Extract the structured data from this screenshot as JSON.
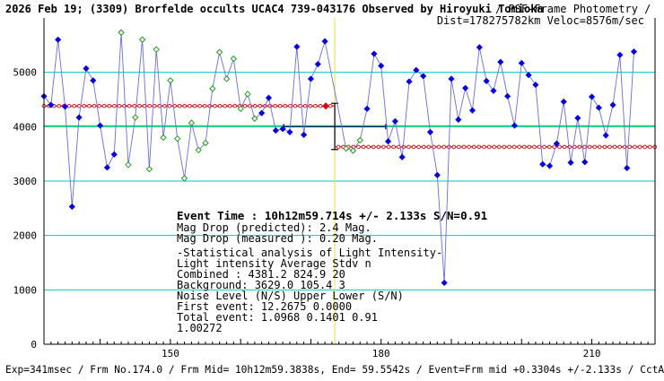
{
  "header": {
    "title": "2026 Feb 19; (3309) Brorfelde occults UCAC4 739-043176 Observed by Hiroyuki Tomioka",
    "method": "/ PSF-Frame Photometry /",
    "dist": "Dist=178275782km Veloc=8576m/sec"
  },
  "footer": {
    "text": "Exp=341msec / Frm No.174.0 / Frm Mid= 10h12m59.3838s, End= 59.5542s / Event=Frm mid +0.3304s +/-2.133s / CctAngle=0.0deg"
  },
  "stats": {
    "event_time": "Event Time : 10h12m59.714s  +/- 2.133s  S/N=0.91",
    "mag_pred": "Mag Drop (predicted):  2.4    Mag.",
    "mag_meas": "Mag Drop (measured ):  0.20   Mag.",
    "title": "-Statistical analysis of Light Intensity-",
    "col_header": "Light intensity     Average   Stdv      n",
    "combined": "  Combined   :        4381.2    824.9     20",
    "background": "  Background:         3629.0    105.4      3",
    "noise_header": "Noise Level (N/S)    Upper     Lower    (S/N)",
    "first_event": "  First event:      12.2675    0.0000",
    "total_event": "  Total event:       1.0968    0.1401    0.91",
    "extra": "1.00272"
  },
  "chart_data": {
    "type": "line",
    "xlim": [
      132,
      219
    ],
    "ylim": [
      0,
      6000
    ],
    "x_ticks": [
      150,
      180,
      210
    ],
    "y_ticks": [
      0,
      1000,
      2000,
      3000,
      4000,
      5000
    ],
    "gridlines": [
      1000,
      2000,
      3000,
      4000,
      5000
    ],
    "levels": {
      "upper": 4381.2,
      "lower": 3629.0,
      "event_x": 173.4,
      "error_x": 2.133,
      "error_y": 300
    },
    "colors": {
      "line": "#6a6ae6",
      "main_marker": "#0000ee",
      "alt_marker": "#1e9e1e",
      "grid": "#00c8c8",
      "green": "#00cc00",
      "red": "#e00000",
      "yellow": "#f0e030",
      "navy": "#000080"
    },
    "series": [
      {
        "values": [
          [
            132,
            4560,
            "b"
          ],
          [
            133,
            4400,
            "b"
          ],
          [
            134,
            5600,
            "b"
          ],
          [
            135,
            4370,
            "b"
          ],
          [
            136,
            2530,
            "b"
          ],
          [
            137,
            4170,
            "b"
          ],
          [
            138,
            5070,
            "b"
          ],
          [
            139,
            4850,
            "b"
          ],
          [
            140,
            4020,
            "b"
          ],
          [
            141,
            3250,
            "b"
          ],
          [
            142,
            3490,
            "b"
          ],
          [
            143,
            5730,
            "g"
          ],
          [
            144,
            3300,
            "g"
          ],
          [
            145,
            4170,
            "g"
          ],
          [
            146,
            5600,
            "g"
          ],
          [
            147,
            3220,
            "g"
          ],
          [
            148,
            5420,
            "g"
          ],
          [
            149,
            3800,
            "g"
          ],
          [
            150,
            4850,
            "g"
          ],
          [
            151,
            3780,
            "g"
          ],
          [
            152,
            3050,
            "g"
          ],
          [
            153,
            4070,
            "g"
          ],
          [
            154,
            3570,
            "g"
          ],
          [
            155,
            3700,
            "g"
          ],
          [
            156,
            4700,
            "g"
          ],
          [
            157,
            5370,
            "g"
          ],
          [
            158,
            4880,
            "g"
          ],
          [
            159,
            5250,
            "g"
          ],
          [
            160,
            4330,
            "g"
          ],
          [
            161,
            4600,
            "g"
          ],
          [
            162,
            4150,
            "g"
          ],
          [
            163,
            4250,
            "b"
          ],
          [
            164,
            4530,
            "b"
          ],
          [
            165,
            3930,
            "b"
          ],
          [
            166,
            3960,
            "b"
          ],
          [
            167,
            3900,
            "b"
          ],
          [
            168,
            5470,
            "b"
          ],
          [
            169,
            3850,
            "b"
          ],
          [
            170,
            4880,
            "b"
          ],
          [
            171,
            5150,
            "b"
          ],
          [
            172,
            5570,
            "b"
          ],
          [
            175,
            3600,
            "g"
          ],
          [
            176,
            3560,
            "g"
          ],
          [
            177,
            3750,
            "g"
          ],
          [
            178,
            4330,
            "b"
          ],
          [
            179,
            5340,
            "b"
          ],
          [
            180,
            5120,
            "b"
          ],
          [
            181,
            3730,
            "b"
          ],
          [
            182,
            4100,
            "b"
          ],
          [
            183,
            3440,
            "b"
          ],
          [
            184,
            4830,
            "b"
          ],
          [
            185,
            5040,
            "b"
          ],
          [
            186,
            4930,
            "b"
          ],
          [
            187,
            3900,
            "b"
          ],
          [
            188,
            3110,
            "b"
          ],
          [
            189,
            1130,
            "b"
          ],
          [
            190,
            4880,
            "b"
          ],
          [
            191,
            4130,
            "b"
          ],
          [
            192,
            4710,
            "b"
          ],
          [
            193,
            4300,
            "b"
          ],
          [
            194,
            5460,
            "b"
          ],
          [
            195,
            4840,
            "b"
          ],
          [
            196,
            4660,
            "b"
          ],
          [
            197,
            5190,
            "b"
          ],
          [
            198,
            4560,
            "b"
          ],
          [
            199,
            4020,
            "b"
          ],
          [
            200,
            5170,
            "b"
          ],
          [
            201,
            4950,
            "b"
          ],
          [
            202,
            4770,
            "b"
          ],
          [
            203,
            3310,
            "b"
          ],
          [
            204,
            3280,
            "b"
          ],
          [
            205,
            3690,
            "b"
          ],
          [
            206,
            4460,
            "b"
          ],
          [
            207,
            3340,
            "b"
          ],
          [
            208,
            4160,
            "b"
          ],
          [
            209,
            3350,
            "b"
          ],
          [
            210,
            4550,
            "b"
          ],
          [
            211,
            4350,
            "b"
          ],
          [
            212,
            3840,
            "b"
          ],
          [
            213,
            4400,
            "b"
          ],
          [
            214,
            5320,
            "b"
          ],
          [
            215,
            3240,
            "b"
          ],
          [
            216,
            5380,
            "b"
          ]
        ]
      }
    ]
  }
}
